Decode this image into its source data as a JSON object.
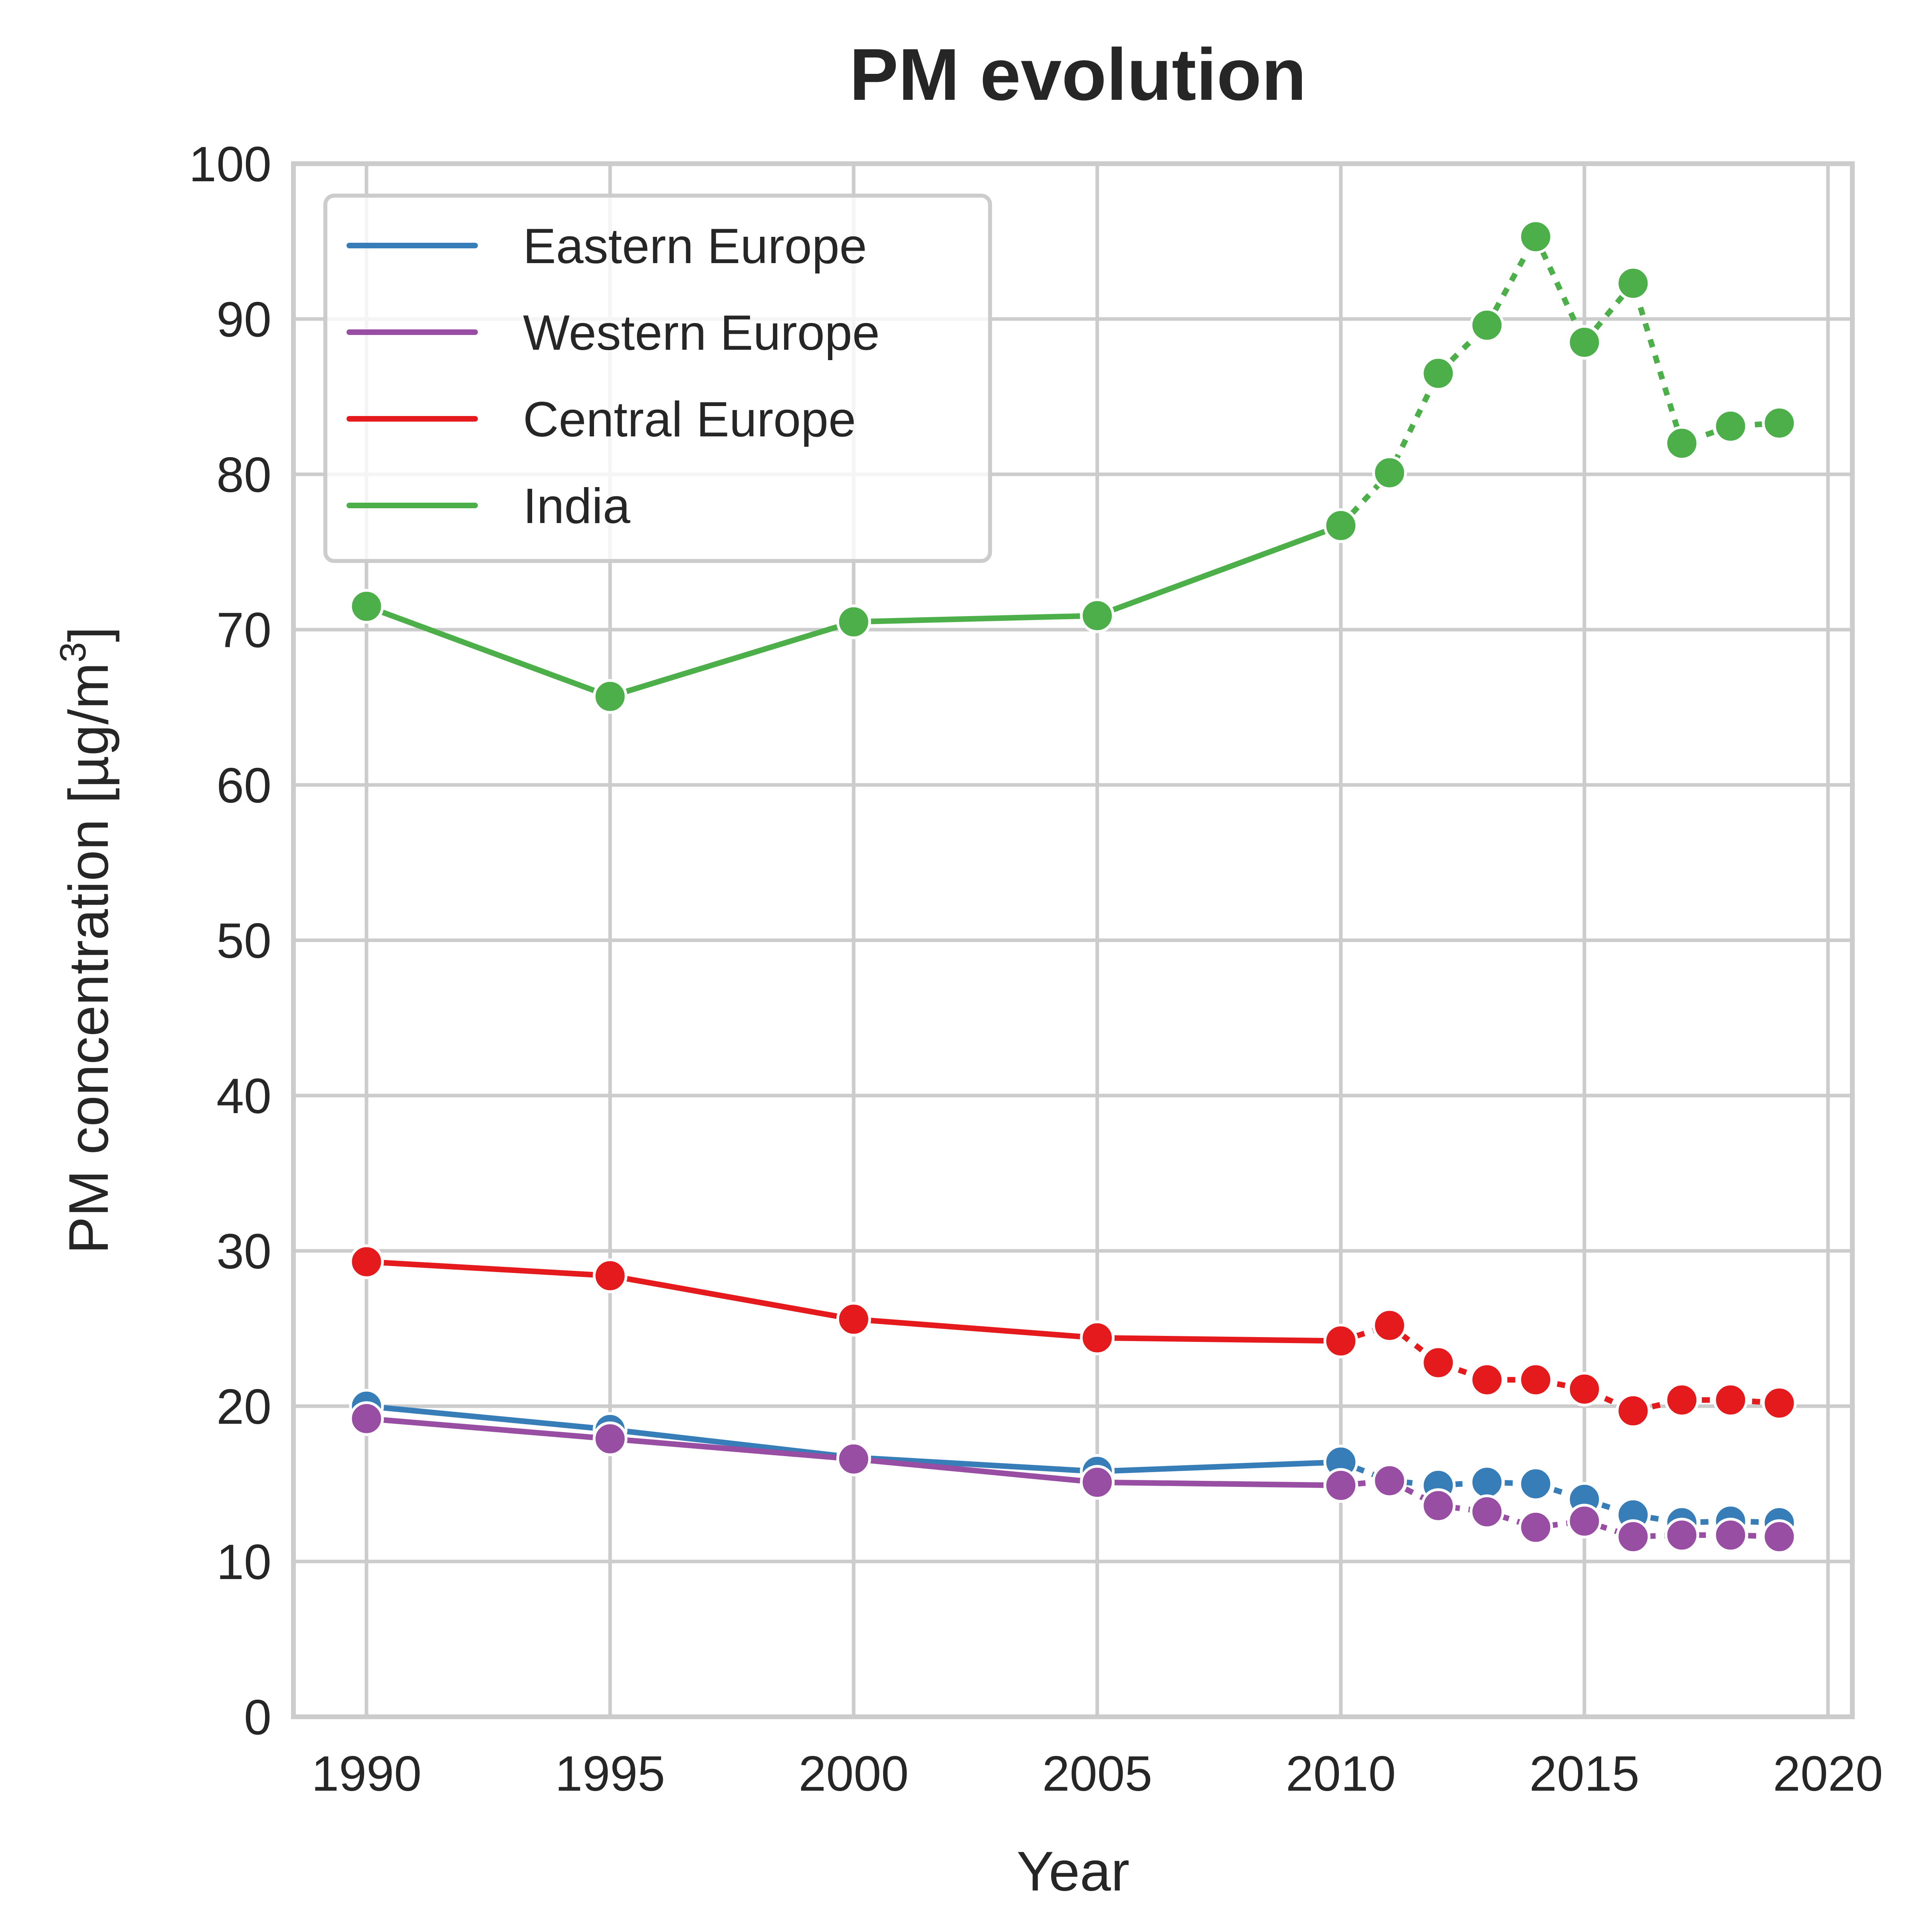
{
  "chart_data": {
    "type": "line",
    "title": "PM evolution",
    "xlabel": "Year",
    "ylabel": "PM concentration [µg/m",
    "ylabel_sup": "3",
    "ylabel_close": "]",
    "xlim": [
      1988.5,
      2020.5
    ],
    "ylim": [
      0,
      100
    ],
    "xticks": [
      1990,
      1995,
      2000,
      2005,
      2010,
      2015,
      2020
    ],
    "yticks": [
      0,
      10,
      20,
      30,
      40,
      50,
      60,
      70,
      80,
      90,
      100
    ],
    "grid": true,
    "legend_position": "top-left",
    "solid_until": 2010,
    "series": [
      {
        "name": "Eastern Europe",
        "color": "#377eb8",
        "x": [
          1990,
          1995,
          2000,
          2005,
          2010,
          2011,
          2012,
          2013,
          2014,
          2015,
          2016,
          2017,
          2018,
          2019
        ],
        "y": [
          20.0,
          18.5,
          16.7,
          15.8,
          16.4,
          15.2,
          14.9,
          15.1,
          15.0,
          14.0,
          13.0,
          12.5,
          12.6,
          12.5
        ]
      },
      {
        "name": "Western Europe",
        "color": "#984ea3",
        "x": [
          1990,
          1995,
          2000,
          2005,
          2010,
          2011,
          2012,
          2013,
          2014,
          2015,
          2016,
          2017,
          2018,
          2019
        ],
        "y": [
          19.2,
          17.9,
          16.6,
          15.1,
          14.9,
          15.2,
          13.6,
          13.2,
          12.2,
          12.6,
          11.6,
          11.7,
          11.7,
          11.6
        ]
      },
      {
        "name": "Central Europe",
        "color": "#e41a1c",
        "x": [
          1990,
          1995,
          2000,
          2005,
          2010,
          2011,
          2012,
          2013,
          2014,
          2015,
          2016,
          2017,
          2018,
          2019
        ],
        "y": [
          29.3,
          28.4,
          25.6,
          24.4,
          24.2,
          25.2,
          22.8,
          21.7,
          21.7,
          21.1,
          19.7,
          20.4,
          20.4,
          20.2
        ]
      },
      {
        "name": "India",
        "color": "#4daf4a",
        "x": [
          1990,
          1995,
          2000,
          2005,
          2010,
          2011,
          2012,
          2013,
          2014,
          2015,
          2016,
          2017,
          2018,
          2019
        ],
        "y": [
          71.5,
          65.7,
          70.5,
          70.9,
          76.7,
          80.1,
          86.5,
          89.6,
          95.3,
          88.5,
          92.3,
          82.0,
          83.1,
          83.3
        ]
      }
    ]
  }
}
